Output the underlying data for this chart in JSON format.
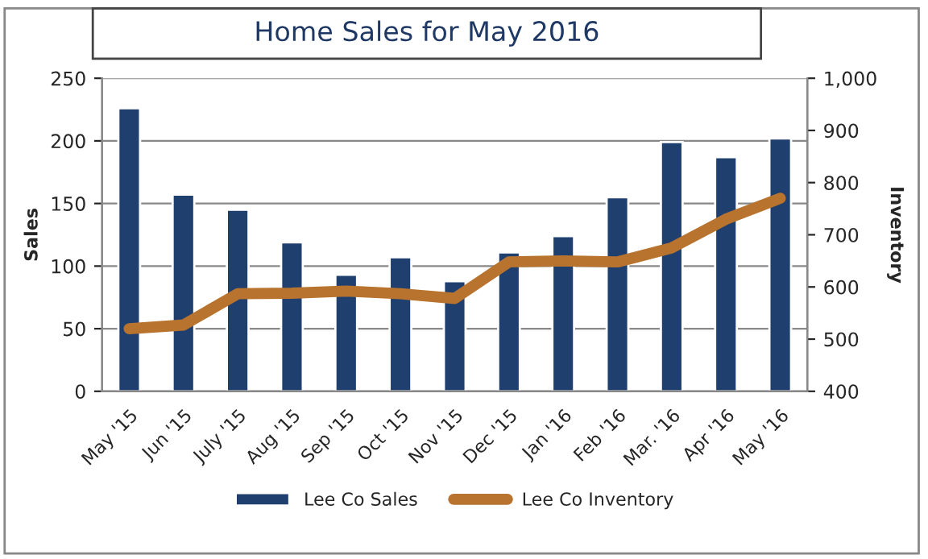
{
  "chart_data": {
    "type": "bar",
    "title": "Home Sales for May 2016",
    "categories": [
      "May '15",
      "Jun '15",
      "July '15",
      "Aug '15",
      "Sep '15",
      "Oct '15",
      "Nov '15",
      "Dec '15",
      "Jan '16",
      "Feb '16",
      "Mar. '16",
      "Apr '16",
      "May '16"
    ],
    "ylabel": "Sales",
    "y2label": "Inventory",
    "series": [
      {
        "name": "Lee Co Sales",
        "color": "#1f3f6e",
        "values": [
          226,
          157,
          145,
          119,
          93,
          107,
          88,
          111,
          124,
          155,
          199,
          187,
          202
        ]
      },
      {
        "name": "Lee Co Inventory",
        "type": "line",
        "axis": "y2",
        "color": "#b8732f",
        "values": [
          520,
          527,
          587,
          588,
          592,
          587,
          578,
          648,
          650,
          648,
          675,
          730,
          770
        ]
      }
    ],
    "ylim": [
      0,
      250
    ],
    "yticks": [
      0,
      50,
      100,
      150,
      200,
      250
    ],
    "y2lim": [
      400,
      1000
    ],
    "y2ticks": [
      400,
      500,
      600,
      700,
      800,
      900,
      {
        "value": 1000,
        "label": "1,000"
      }
    ],
    "grid": "y",
    "legend": "bottom",
    "marker": "none",
    "line_style": "solid"
  }
}
